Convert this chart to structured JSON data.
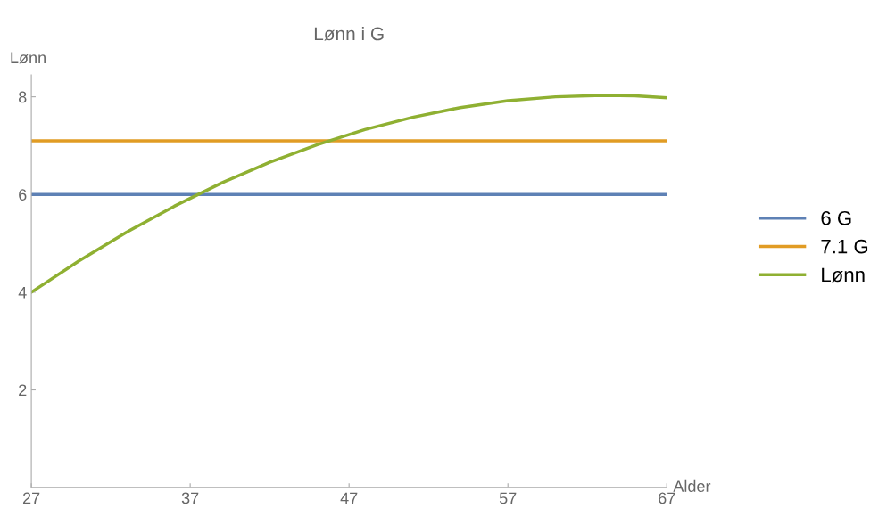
{
  "chart_data": {
    "type": "line",
    "title": "Lønn i G",
    "xlabel": "Alder",
    "ylabel": "Lønn",
    "xlim": [
      27,
      67
    ],
    "ylim": [
      0,
      8.45
    ],
    "xticks": [
      27,
      37,
      47,
      57,
      67
    ],
    "yticks": [
      2,
      4,
      6,
      8
    ],
    "grid": false,
    "legend": "right",
    "marker": "none",
    "line_style": "solid",
    "series": [
      {
        "name": "6 G",
        "color": "#5e81b5",
        "x": [
          27,
          67
        ],
        "values": [
          6,
          6
        ]
      },
      {
        "name": "7.1 G",
        "color": "#e19c24",
        "x": [
          27,
          67
        ],
        "values": [
          7.1,
          7.1
        ]
      },
      {
        "name": "Lønn",
        "color": "#8fb032",
        "x": [
          27,
          30,
          33,
          36,
          39,
          42,
          45,
          48,
          51,
          54,
          57,
          60,
          63,
          65,
          67
        ],
        "values": [
          4.0,
          4.64,
          5.23,
          5.76,
          6.24,
          6.66,
          7.02,
          7.33,
          7.58,
          7.78,
          7.92,
          8.0,
          8.03,
          8.02,
          7.98
        ]
      }
    ]
  }
}
